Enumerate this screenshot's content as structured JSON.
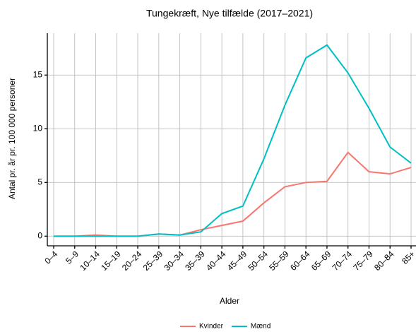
{
  "chart_data": {
    "type": "line",
    "title": "Tungekræft, Nye tilfælde (2017–2021)",
    "x_label": "Alder",
    "y_label": "Antal pr. år pr. 100 000 personer",
    "categories": [
      "0–4",
      "5–9",
      "10–14",
      "15–19",
      "20–24",
      "25–39",
      "30–34",
      "35–39",
      "40–44",
      "45–49",
      "50–54",
      "55–59",
      "60–64",
      "65–69",
      "70–74",
      "75–79",
      "80–84",
      "85+"
    ],
    "series": [
      {
        "name": "Kvinder",
        "color": "#F8766D",
        "values": [
          0,
          0,
          0.1,
          0,
          0,
          0.2,
          0.1,
          0.6,
          1.0,
          1.4,
          3.1,
          4.6,
          5.0,
          5.1,
          7.8,
          6.0,
          5.8,
          6.4
        ]
      },
      {
        "name": "Mænd",
        "color": "#00BFC4",
        "values": [
          0,
          0,
          0,
          0,
          0,
          0.2,
          0.1,
          0.4,
          2.1,
          2.8,
          7.2,
          12.2,
          16.6,
          17.8,
          15.2,
          11.9,
          8.3,
          6.8
        ]
      }
    ],
    "ylim": [
      -0.9,
      18.9
    ],
    "yticks": [
      0,
      5,
      10,
      15
    ],
    "grid": true,
    "legend": "bottom"
  }
}
